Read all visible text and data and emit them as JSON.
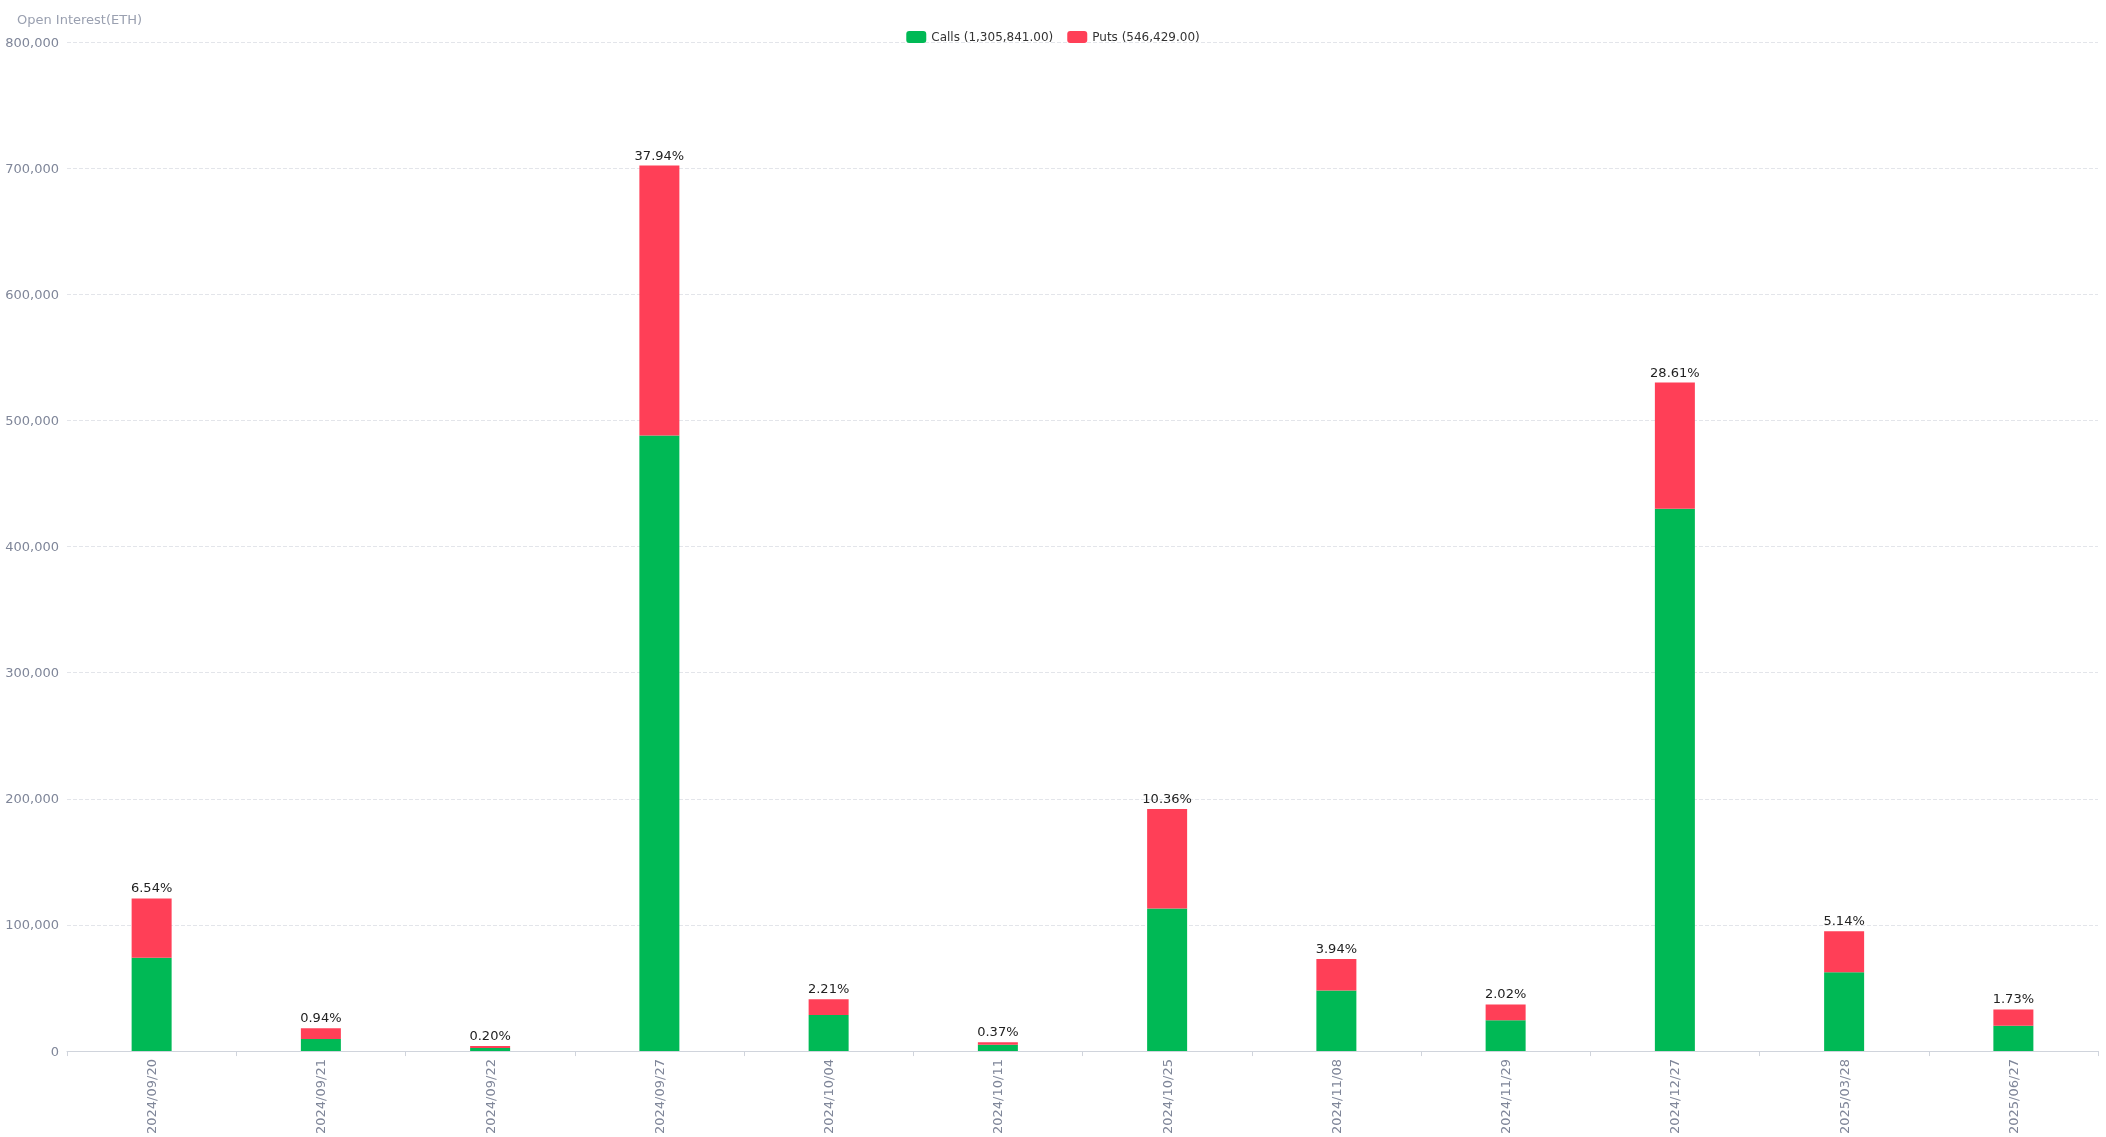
{
  "chart_data": {
    "type": "bar",
    "ylabel": "Open Interest(ETH)",
    "stacked": true,
    "legend": "top",
    "grid": "y",
    "categories": [
      "2024/09/20",
      "2024/09/21",
      "2024/09/22",
      "2024/09/27",
      "2024/10/04",
      "2024/10/11",
      "2024/10/25",
      "2024/11/08",
      "2024/11/29",
      "2024/12/27",
      "2025/03/28",
      "2025/06/27"
    ],
    "series": [
      {
        "name": "Calls (1,305,841.00)",
        "color": "#00b955",
        "values": [
          74000,
          9500,
          2500,
          488000,
          28500,
          5000,
          113000,
          48000,
          24500,
          430000,
          62500,
          20000
        ]
      },
      {
        "name": "Puts (546,429.00)",
        "color": "#ff3f57",
        "values": [
          47000,
          8500,
          1500,
          214000,
          12500,
          2000,
          79000,
          25000,
          12500,
          100000,
          32500,
          13000
        ]
      }
    ],
    "annotations": [
      {
        "text": "6.54%",
        "x": "2024/09/20",
        "y": 121000
      },
      {
        "text": "0.94%",
        "x": "2024/09/21",
        "y": 18000
      },
      {
        "text": "0.20%",
        "x": "2024/09/22",
        "y": 4000
      },
      {
        "text": "37.94%",
        "x": "2024/09/27",
        "y": 702000
      },
      {
        "text": "2.21%",
        "x": "2024/10/04",
        "y": 41000
      },
      {
        "text": "0.37%",
        "x": "2024/10/11",
        "y": 7000
      },
      {
        "text": "10.36%",
        "x": "2024/10/25",
        "y": 192000
      },
      {
        "text": "3.94%",
        "x": "2024/11/08",
        "y": 73000
      },
      {
        "text": "2.02%",
        "x": "2024/11/29",
        "y": 37000
      },
      {
        "text": "28.61%",
        "x": "2024/12/27",
        "y": 530000
      },
      {
        "text": "5.14%",
        "x": "2025/03/28",
        "y": 95000
      },
      {
        "text": "1.73%",
        "x": "2025/06/27",
        "y": 33000
      }
    ],
    "ylim": [
      0,
      800000
    ],
    "yticks": [
      {
        "value": 0,
        "label": "0"
      },
      {
        "value": 100000,
        "label": "100,000"
      },
      {
        "value": 200000,
        "label": "200,000"
      },
      {
        "value": 300000,
        "label": "300,000"
      },
      {
        "value": 400000,
        "label": "400,000"
      },
      {
        "value": 500000,
        "label": "500,000"
      },
      {
        "value": 600000,
        "label": "600,000"
      },
      {
        "value": 700000,
        "label": "700,000"
      },
      {
        "value": 800000,
        "label": "800,000"
      }
    ]
  }
}
